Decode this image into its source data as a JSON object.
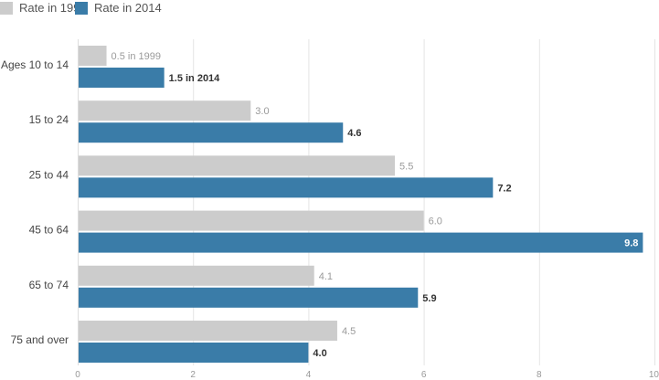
{
  "chart_data": {
    "type": "bar",
    "orientation": "horizontal",
    "categories": [
      "Ages 10 to 14",
      "15 to 24",
      "25 to 44",
      "45 to 64",
      "65 to 74",
      "75 and over"
    ],
    "series": [
      {
        "name": "Rate in 1999",
        "color": "#cccccc",
        "values": [
          0.5,
          3.0,
          5.5,
          6.0,
          4.1,
          4.5
        ],
        "labels": [
          "0.5 in 1999",
          "3.0",
          "5.5",
          "6.0",
          "4.1",
          "4.5"
        ]
      },
      {
        "name": "Rate in 2014",
        "color": "#3a7ca8",
        "values": [
          1.5,
          4.6,
          7.2,
          9.8,
          5.9,
          4.0
        ],
        "labels": [
          "1.5 in 2014",
          "4.6",
          "7.2",
          "9.8",
          "5.9",
          "4.0"
        ]
      }
    ],
    "x_ticks": [
      "0",
      "2",
      "4",
      "6",
      "8",
      "10"
    ],
    "xlim": [
      0,
      10
    ],
    "grid": true,
    "legend": "top-left",
    "title": "",
    "xlabel": "",
    "ylabel": ""
  }
}
